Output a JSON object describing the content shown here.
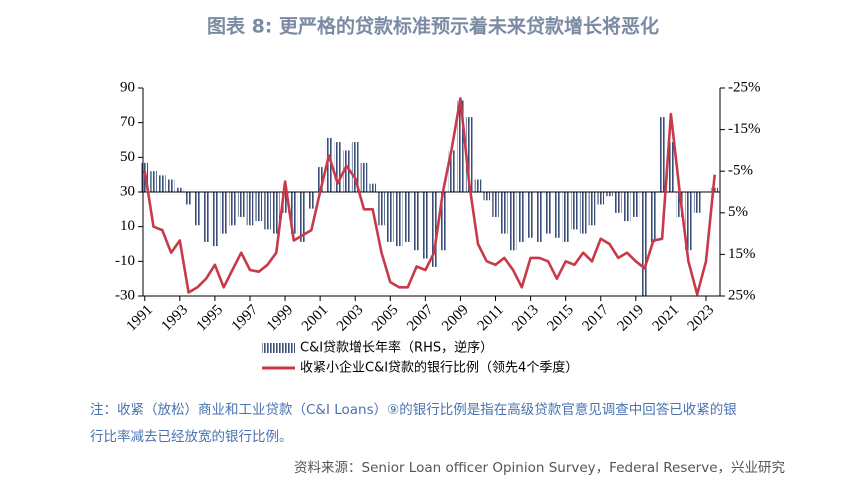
{
  "chart_data": {
    "type": "bar-line",
    "title": "图表 8:   更严格的贷款标准预示着未来贷款增长将恶化",
    "x": [
      1991.0,
      1991.5,
      1992.0,
      1992.5,
      1993.0,
      1993.5,
      1994.0,
      1994.5,
      1995.0,
      1995.5,
      1996.0,
      1996.5,
      1997.0,
      1997.5,
      1998.0,
      1998.5,
      1999.0,
      1999.5,
      2000.0,
      2000.5,
      2001.0,
      2001.5,
      2002.0,
      2002.5,
      2003.0,
      2003.5,
      2004.0,
      2004.5,
      2005.0,
      2005.5,
      2006.0,
      2006.5,
      2007.0,
      2007.5,
      2008.0,
      2008.5,
      2009.0,
      2009.5,
      2010.0,
      2010.5,
      2011.0,
      2011.5,
      2012.0,
      2012.5,
      2013.0,
      2013.5,
      2014.0,
      2014.5,
      2015.0,
      2015.5,
      2016.0,
      2016.5,
      2017.0,
      2017.5,
      2018.0,
      2018.5,
      2019.0,
      2019.5,
      2020.0,
      2020.5,
      2021.0,
      2021.5,
      2022.0,
      2022.5,
      2023.0,
      2023.5
    ],
    "series": [
      {
        "name": "C&I贷款增长年率（RHS，逆序）",
        "type": "bar",
        "axis": "y2",
        "color": "#3a4e78",
        "values": [
          -7,
          -5,
          -4,
          -3,
          -1,
          3,
          8,
          12,
          13,
          10,
          8,
          6,
          8,
          7,
          9,
          10,
          5,
          10,
          12,
          4,
          -6,
          -13,
          -12,
          -10,
          -12,
          -7,
          -2,
          8,
          12,
          13,
          12,
          14,
          16,
          18,
          14,
          -10,
          -22,
          -18,
          -3,
          2,
          6,
          10,
          14,
          12,
          11,
          12,
          10,
          11,
          12,
          9,
          10,
          8,
          3,
          1,
          5,
          7,
          6,
          25,
          12,
          -18,
          -12,
          6,
          14,
          5,
          0,
          -1
        ]
      },
      {
        "name": "收紧小企业C&I贷款的银行比例（领先4个季度）",
        "type": "line",
        "color": "#c8394a",
        "values": [
          42,
          10,
          8,
          -5,
          2,
          -28,
          -25,
          -20,
          -12,
          -25,
          -15,
          -5,
          -15,
          -16,
          -12,
          -5,
          36,
          2,
          5,
          8,
          30,
          51,
          35,
          45,
          38,
          20,
          20,
          -5,
          -22,
          -25,
          -25,
          -13,
          -15,
          -5,
          30,
          55,
          84,
          35,
          0,
          -10,
          -12,
          -8,
          -15,
          -25,
          -8,
          -8,
          -10,
          -20,
          -10,
          -12,
          -5,
          -10,
          3,
          0,
          -8,
          -5,
          -10,
          -14,
          2,
          3,
          75,
          30,
          -10,
          -29,
          -10,
          40
        ]
      }
    ],
    "xlim": [
      1990.9,
      2023.8
    ],
    "xticks": [
      1991,
      1993,
      1995,
      1997,
      1999,
      2001,
      2003,
      2005,
      2007,
      2009,
      2011,
      2013,
      2015,
      2017,
      2019,
      2021,
      2023
    ],
    "ylim": [
      -30,
      90
    ],
    "yticks": [
      -30,
      -10,
      10,
      30,
      50,
      70,
      90
    ],
    "y2lim": [
      25,
      -25
    ],
    "y2ticks": [
      {
        "value": -25,
        "label": "-25%"
      },
      {
        "value": -15,
        "label": "-15%"
      },
      {
        "value": -5,
        "label": "-5%"
      },
      {
        "value": 5,
        "label": "5%"
      },
      {
        "value": 15,
        "label": "15%"
      },
      {
        "value": 25,
        "label": "25%"
      }
    ],
    "note_lines": [
      "注：收紧（放松）商业和工业贷款（C&I Loans）⑨的银行比例是指在高级贷款官意见调查中回答已收紧的银",
      "行比率减去已经放宽的银行比例。"
    ],
    "source": "资料来源：Senior Loan officer Opinion Survey，Federal Reserve，兴业研究"
  }
}
